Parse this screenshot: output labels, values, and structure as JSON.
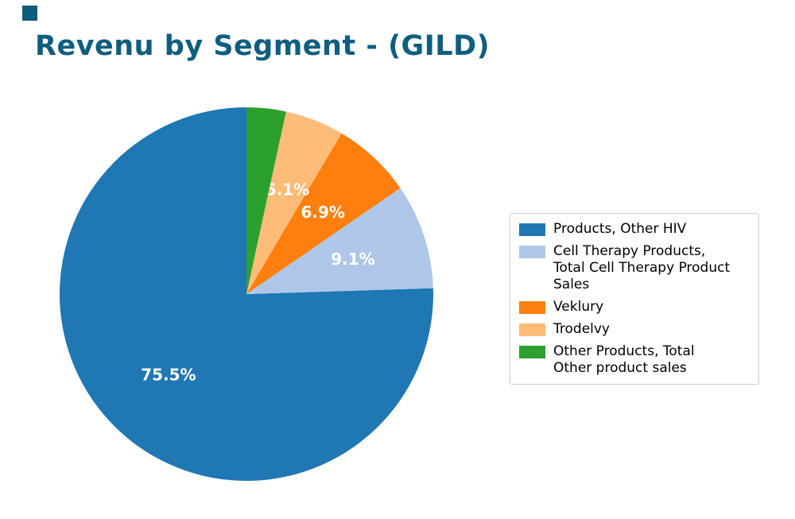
{
  "page": {
    "title": "Revenu by Segment - (GILD)"
  },
  "accent": {
    "title_color": "#0e5e80",
    "corner_square_color": "#0d5c7c",
    "pct_label_color": "#ffffff",
    "legend_border_color": "#cccccc"
  },
  "chart_data": {
    "type": "pie",
    "title": "Revenu by Segment - (GILD)",
    "start_angle": 90,
    "direction": "counterclockwise",
    "legend_position": "right",
    "slices": [
      {
        "label": "Products, Other HIV",
        "value": 75.5,
        "pct_label": "75.5%",
        "color": "#1f77b4"
      },
      {
        "label": "Cell Therapy Products,\nTotal Cell Therapy Product\nSales",
        "value": 9.1,
        "pct_label": "9.1%",
        "color": "#aec7e8"
      },
      {
        "label": "Veklury",
        "value": 6.9,
        "pct_label": "6.9%",
        "color": "#ff7f0e"
      },
      {
        "label": "Trodelvy",
        "value": 5.1,
        "pct_label": "5.1%",
        "color": "#ffbb78"
      },
      {
        "label": "Other Products, Total\nOther product sales",
        "value": 3.4,
        "pct_label": "",
        "color": "#2ca02c"
      }
    ]
  }
}
